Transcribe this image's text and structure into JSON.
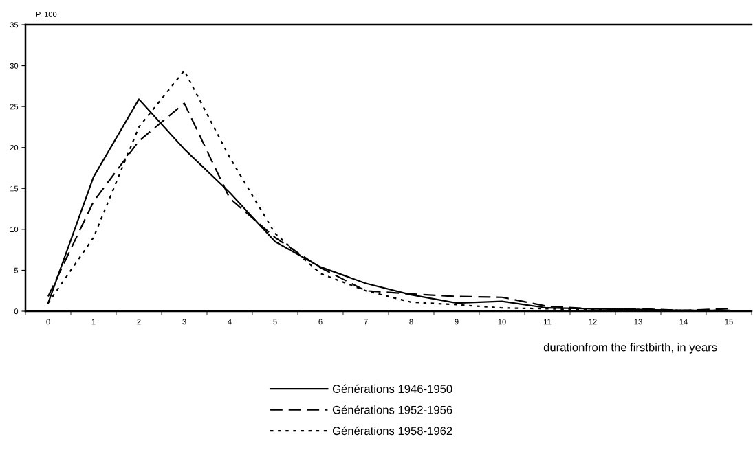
{
  "chart_data": {
    "type": "line",
    "ylabel": "P. 100",
    "xlabel": "durationfrom the firstbirth, in years",
    "categories": [
      "0",
      "1",
      "2",
      "3",
      "4",
      "5",
      "6",
      "7",
      "8",
      "9",
      "10",
      "11",
      "12",
      "13",
      "14",
      "15"
    ],
    "ylim": [
      0,
      35
    ],
    "yticks": [
      0,
      5,
      10,
      15,
      20,
      25,
      30,
      35
    ],
    "grid": false,
    "legend": "bottom",
    "marker": "none",
    "series": [
      {
        "name": "Générations 1946-1950",
        "color": "#000000",
        "line_style": "solid",
        "values": [
          1.0,
          16.4,
          25.9,
          19.8,
          14.5,
          8.5,
          5.4,
          3.4,
          2.0,
          1.0,
          1.2,
          0.4,
          0.3,
          0.2,
          0.1,
          0.1
        ]
      },
      {
        "name": "Générations 1952-1956",
        "color": "#000000",
        "line_style": "dashed",
        "values": [
          1.8,
          13.4,
          20.8,
          25.4,
          13.8,
          9.0,
          5.3,
          2.5,
          2.1,
          1.8,
          1.7,
          0.6,
          0.3,
          0.3,
          0.1,
          0.3
        ]
      },
      {
        "name": "Générations 1958-1962",
        "color": "#000000",
        "line_style": "dotted",
        "values": [
          1.0,
          9.0,
          22.5,
          29.4,
          18.8,
          9.5,
          4.6,
          2.5,
          1.1,
          0.8,
          0.4,
          0.3,
          0.2,
          0.2,
          0.1,
          0.1
        ]
      }
    ]
  }
}
